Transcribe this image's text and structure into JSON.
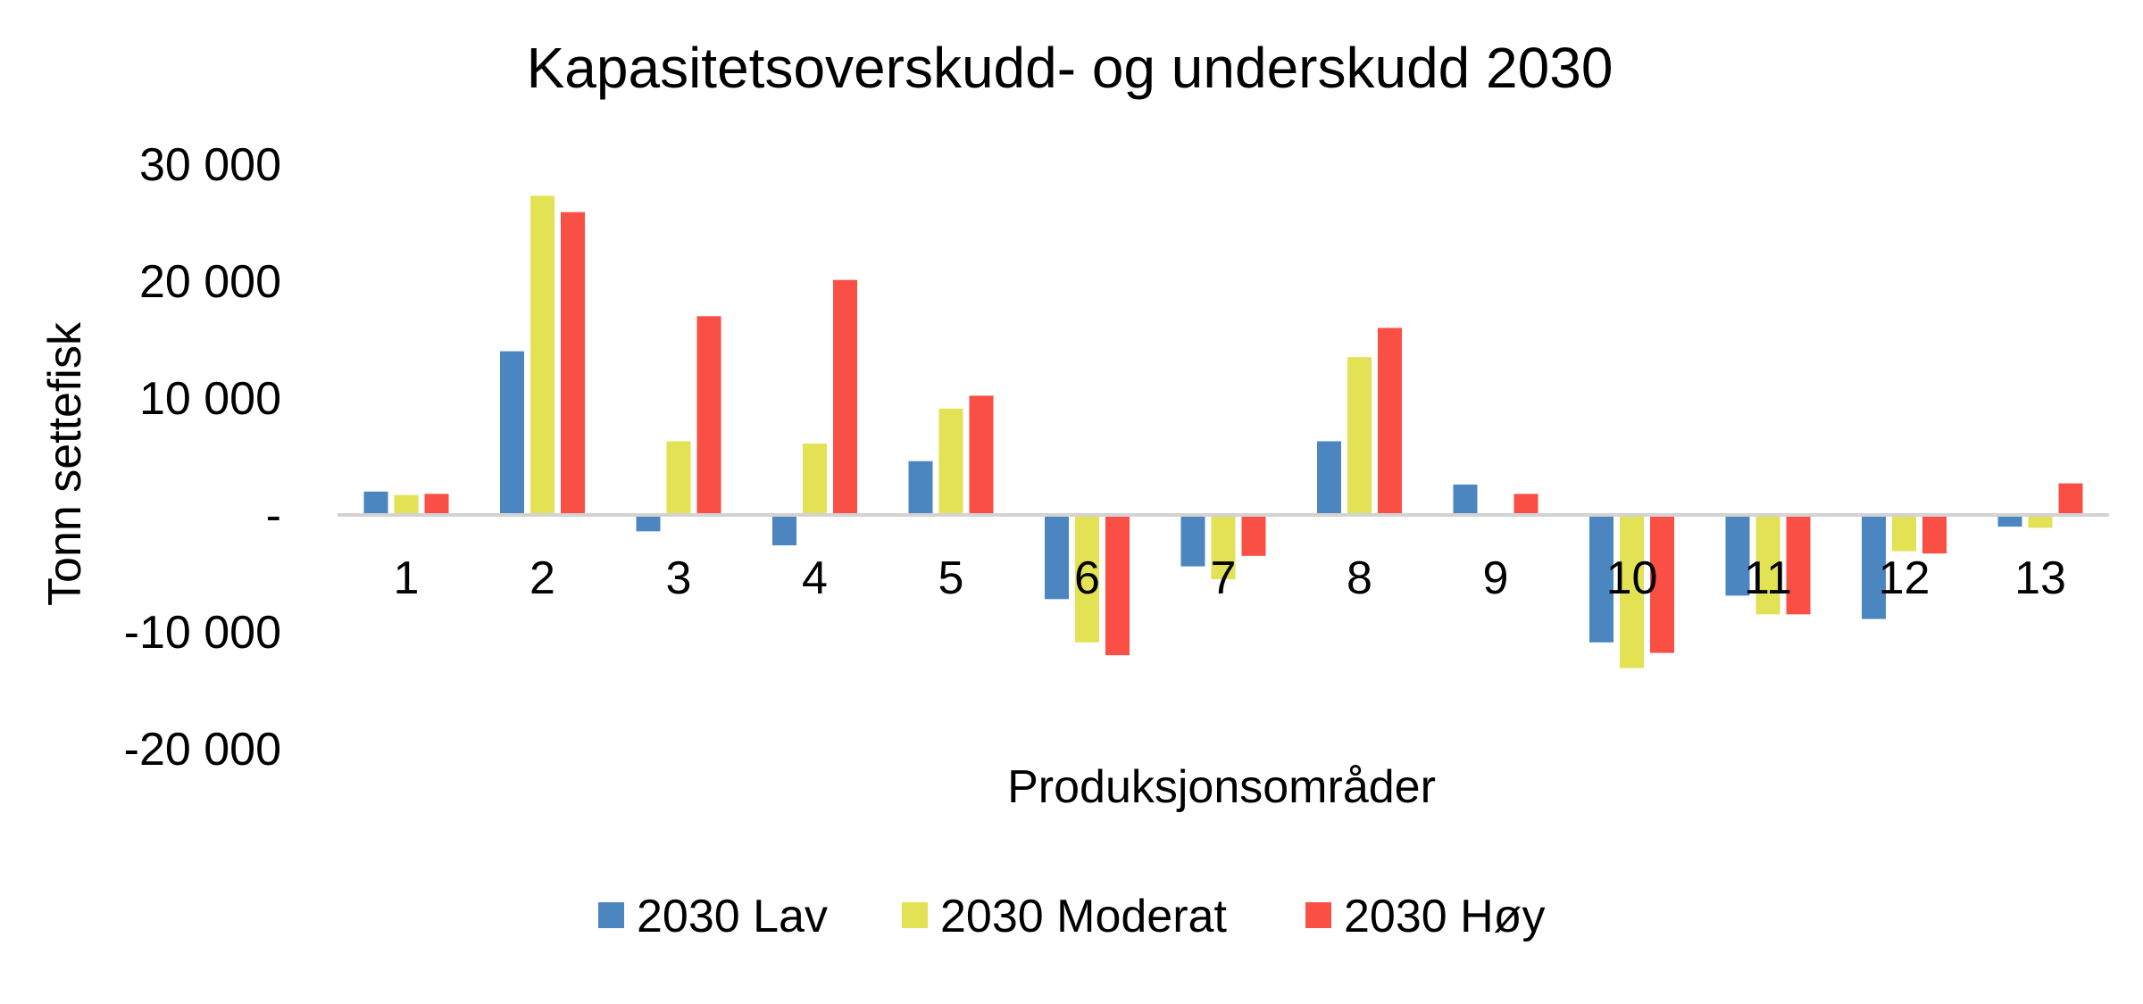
{
  "chart_data": {
    "type": "bar",
    "title": "Kapasitetsoverskudd- og underskudd 2030",
    "xlabel": "Produksjonsområder",
    "ylabel": "Tonn settefisk",
    "ylim": [
      -20000,
      30000
    ],
    "yticks": [
      {
        "value": 30000,
        "label": "30 000"
      },
      {
        "value": 20000,
        "label": "20 000"
      },
      {
        "value": 10000,
        "label": "10 000"
      },
      {
        "value": 0,
        "label": "-"
      },
      {
        "value": -10000,
        "label": "-10 000"
      },
      {
        "value": -20000,
        "label": "-20 000"
      }
    ],
    "categories": [
      "1",
      "2",
      "3",
      "4",
      "5",
      "6",
      "7",
      "8",
      "9",
      "10",
      "11",
      "12",
      "13"
    ],
    "series": [
      {
        "name": "2030 Lav",
        "color": "#4b86c0",
        "values": [
          2000,
          14000,
          -1400,
          -2600,
          4600,
          -7200,
          -4400,
          6300,
          2600,
          -10900,
          -6900,
          -8900,
          -1000
        ]
      },
      {
        "name": "2030 Moderat",
        "color": "#e2e254",
        "values": [
          1700,
          27300,
          6300,
          6100,
          9100,
          -10900,
          -5500,
          13500,
          0,
          -13100,
          -8500,
          -3100,
          -1100
        ]
      },
      {
        "name": "2030 Høy",
        "color": "#fa4f45",
        "values": [
          1800,
          25900,
          17000,
          20100,
          10200,
          -12000,
          -3500,
          16000,
          1800,
          -11800,
          -8500,
          -3300,
          2700
        ]
      }
    ],
    "grid": false,
    "legend": "bottom"
  }
}
